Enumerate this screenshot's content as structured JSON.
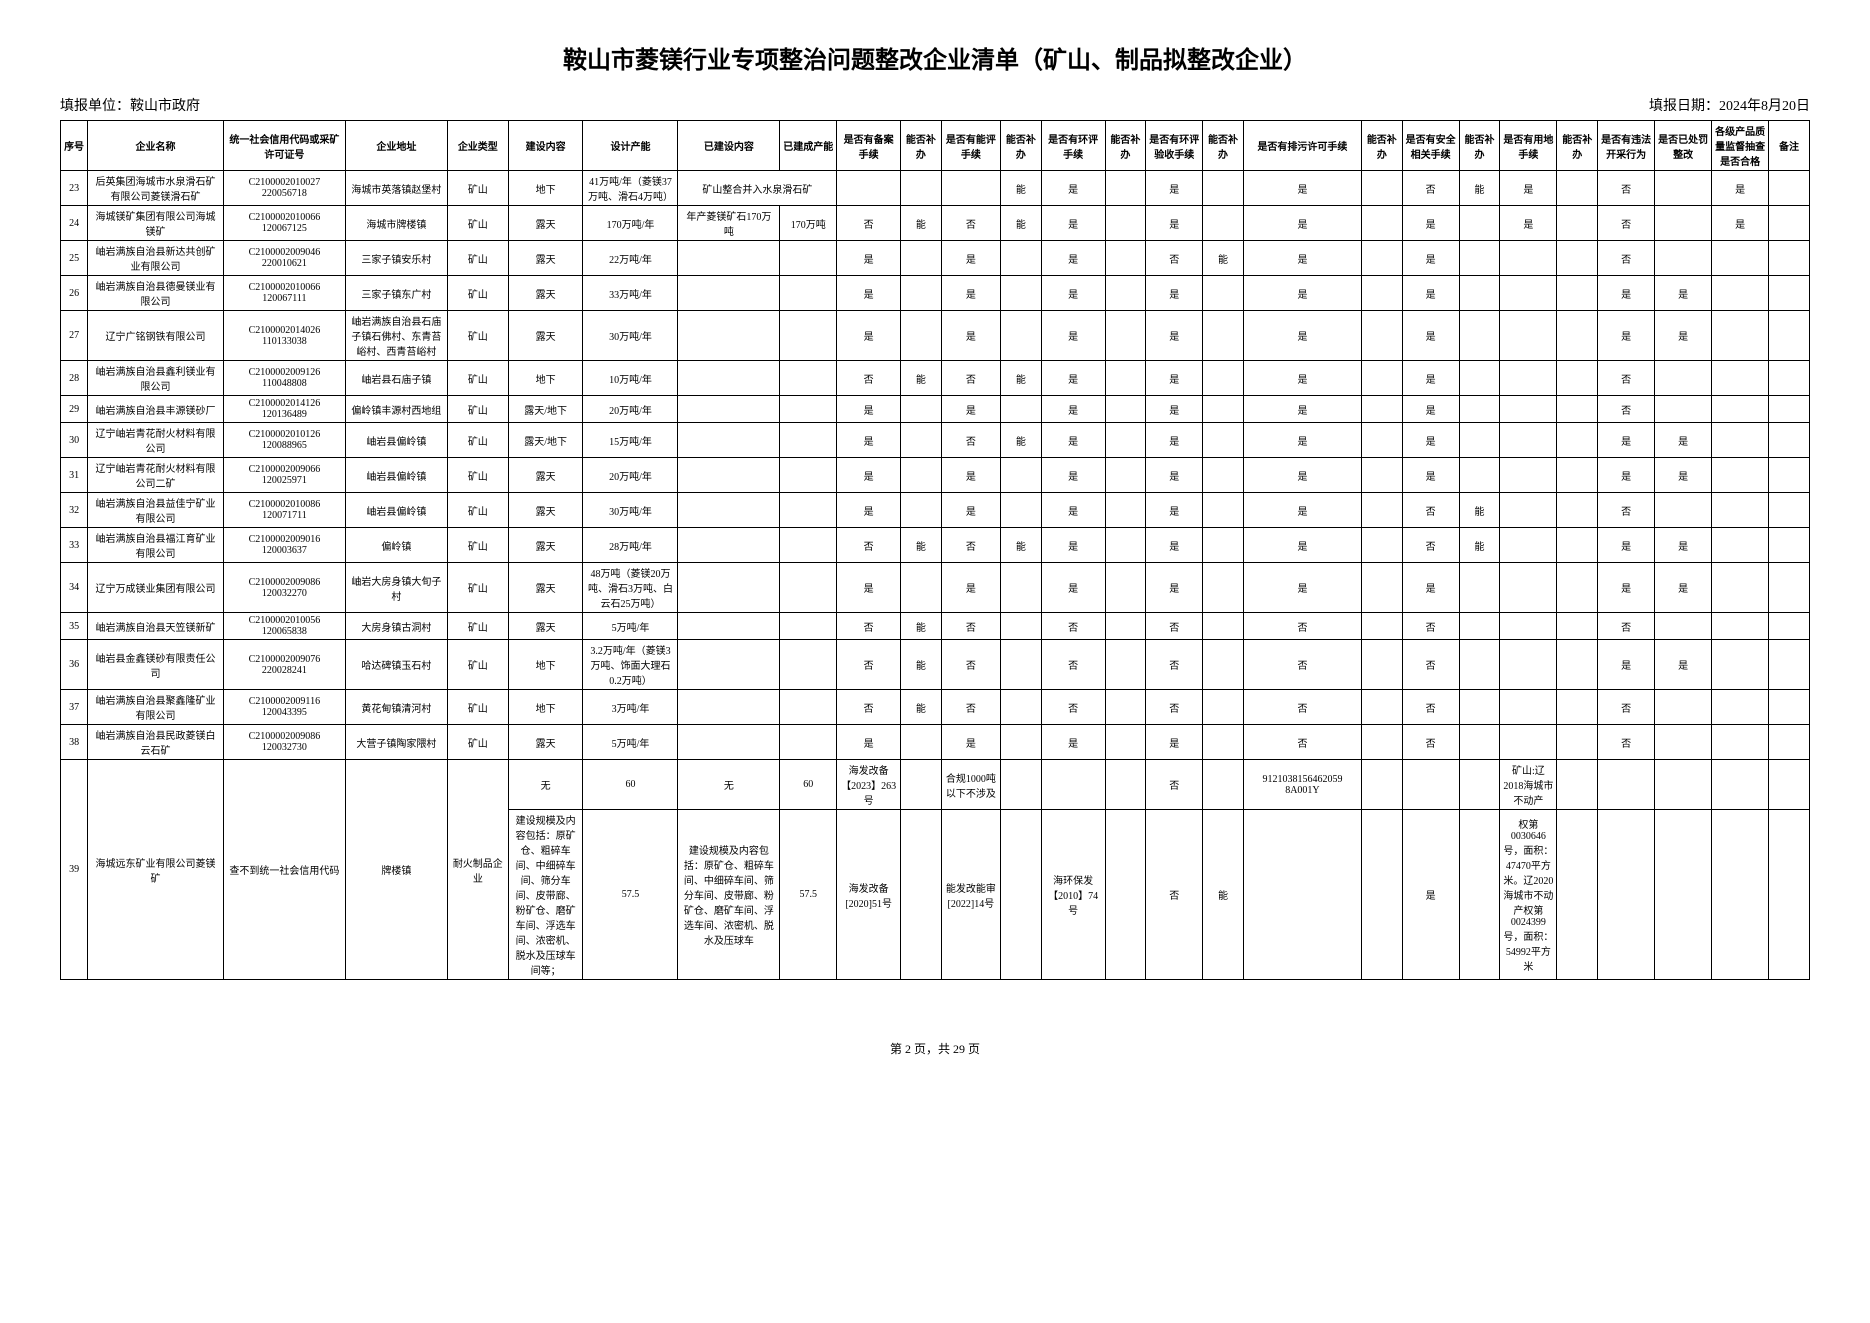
{
  "title": "鞍山市菱镁行业专项整治问题整改企业清单（矿山、制品拟整改企业）",
  "reportUnit": "填报单位：鞍山市政府",
  "reportDate": "填报日期：2024年8月20日",
  "footer": "第 2 页，共 29 页",
  "headers": [
    "序号",
    "企业名称",
    "统一社会信用代码或采矿许可证号",
    "企业地址",
    "企业类型",
    "建设内容",
    "设计产能",
    "已建设内容",
    "已建成产能",
    "是否有备案手续",
    "能否补办",
    "是否有能评手续",
    "能否补办",
    "是否有环评手续",
    "能否补办",
    "是否有环评验收手续",
    "能否补办",
    "是否有排污许可手续",
    "能否补办",
    "是否有安全相关手续",
    "能否补办",
    "是否有用地手续",
    "能否补办",
    "是否有违法开采行为",
    "是否已处罚整改",
    "各级产品质量监督抽查是否合格",
    "备注"
  ],
  "rows": [
    {
      "seq": "23",
      "name": "后英集团海城市水泉滑石矿有限公司菱镁滑石矿",
      "code": "C2100002010027 220056718",
      "addr": "海城市英落镇赵堡村",
      "type": "矿山",
      "build": "地下",
      "cap": "41万吨/年（菱镁37万吨、滑石4万吨）",
      "built": "矿山整合并入水泉滑石矿",
      "builtcap": "",
      "c9": "",
      "c10": "",
      "c11": "",
      "c12": "能",
      "c13": "是",
      "c14": "",
      "c15": "是",
      "c16": "",
      "c17": "是",
      "c18": "",
      "c19": "否",
      "c20": "能",
      "c21": "是",
      "c22": "",
      "c23": "否",
      "c24": "",
      "c25": "是",
      "c26": ""
    },
    {
      "seq": "24",
      "name": "海城镁矿集团有限公司海城镁矿",
      "code": "C2100002010066 120067125",
      "addr": "海城市牌楼镇",
      "type": "矿山",
      "build": "露天",
      "cap": "170万吨/年",
      "built": "年产菱镁矿石170万吨",
      "builtcap": "170万吨",
      "c9": "否",
      "c10": "能",
      "c11": "否",
      "c12": "能",
      "c13": "是",
      "c14": "",
      "c15": "是",
      "c16": "",
      "c17": "是",
      "c18": "",
      "c19": "是",
      "c20": "",
      "c21": "是",
      "c22": "",
      "c23": "否",
      "c24": "",
      "c25": "是",
      "c26": ""
    },
    {
      "seq": "25",
      "name": "岫岩满族自治县新达共创矿业有限公司",
      "code": "C2100002009046 220010621",
      "addr": "三家子镇安乐村",
      "type": "矿山",
      "build": "露天",
      "cap": "22万吨/年",
      "built": "",
      "builtcap": "",
      "c9": "是",
      "c10": "",
      "c11": "是",
      "c12": "",
      "c13": "是",
      "c14": "",
      "c15": "否",
      "c16": "能",
      "c17": "是",
      "c18": "",
      "c19": "是",
      "c20": "",
      "c21": "",
      "c22": "",
      "c23": "否",
      "c24": "",
      "c25": "",
      "c26": ""
    },
    {
      "seq": "26",
      "name": "岫岩满族自治县德曼镁业有限公司",
      "code": "C2100002010066 120067111",
      "addr": "三家子镇东广村",
      "type": "矿山",
      "build": "露天",
      "cap": "33万吨/年",
      "built": "",
      "builtcap": "",
      "c9": "是",
      "c10": "",
      "c11": "是",
      "c12": "",
      "c13": "是",
      "c14": "",
      "c15": "是",
      "c16": "",
      "c17": "是",
      "c18": "",
      "c19": "是",
      "c20": "",
      "c21": "",
      "c22": "",
      "c23": "是",
      "c24": "是",
      "c25": "",
      "c26": ""
    },
    {
      "seq": "27",
      "name": "辽宁广铭钢铁有限公司",
      "code": "C2100002014026 110133038",
      "addr": "岫岩满族自治县石庙子镇石佛村、东青苔峪村、西青苔峪村",
      "type": "矿山",
      "build": "露天",
      "cap": "30万吨/年",
      "built": "",
      "builtcap": "",
      "c9": "是",
      "c10": "",
      "c11": "是",
      "c12": "",
      "c13": "是",
      "c14": "",
      "c15": "是",
      "c16": "",
      "c17": "是",
      "c18": "",
      "c19": "是",
      "c20": "",
      "c21": "",
      "c22": "",
      "c23": "是",
      "c24": "是",
      "c25": "",
      "c26": ""
    },
    {
      "seq": "28",
      "name": "岫岩满族自治县鑫利镁业有限公司",
      "code": "C2100002009126 110048808",
      "addr": "岫岩县石庙子镇",
      "type": "矿山",
      "build": "地下",
      "cap": "10万吨/年",
      "built": "",
      "builtcap": "",
      "c9": "否",
      "c10": "能",
      "c11": "否",
      "c12": "能",
      "c13": "是",
      "c14": "",
      "c15": "是",
      "c16": "",
      "c17": "是",
      "c18": "",
      "c19": "是",
      "c20": "",
      "c21": "",
      "c22": "",
      "c23": "否",
      "c24": "",
      "c25": "",
      "c26": ""
    },
    {
      "seq": "29",
      "name": "岫岩满族自治县丰源镁砂厂",
      "code": "C2100002014126 120136489",
      "addr": "偏岭镇丰源村西地组",
      "type": "矿山",
      "build": "露天/地下",
      "cap": "20万吨/年",
      "built": "",
      "builtcap": "",
      "c9": "是",
      "c10": "",
      "c11": "是",
      "c12": "",
      "c13": "是",
      "c14": "",
      "c15": "是",
      "c16": "",
      "c17": "是",
      "c18": "",
      "c19": "是",
      "c20": "",
      "c21": "",
      "c22": "",
      "c23": "否",
      "c24": "",
      "c25": "",
      "c26": ""
    },
    {
      "seq": "30",
      "name": "辽宁岫岩青花耐火材料有限公司",
      "code": "C2100002010126 120088965",
      "addr": "岫岩县偏岭镇",
      "type": "矿山",
      "build": "露天/地下",
      "cap": "15万吨/年",
      "built": "",
      "builtcap": "",
      "c9": "是",
      "c10": "",
      "c11": "否",
      "c12": "能",
      "c13": "是",
      "c14": "",
      "c15": "是",
      "c16": "",
      "c17": "是",
      "c18": "",
      "c19": "是",
      "c20": "",
      "c21": "",
      "c22": "",
      "c23": "是",
      "c24": "是",
      "c25": "",
      "c26": ""
    },
    {
      "seq": "31",
      "name": "辽宁岫岩青花耐火材料有限公司二矿",
      "code": "C2100002009066 120025971",
      "addr": "岫岩县偏岭镇",
      "type": "矿山",
      "build": "露天",
      "cap": "20万吨/年",
      "built": "",
      "builtcap": "",
      "c9": "是",
      "c10": "",
      "c11": "是",
      "c12": "",
      "c13": "是",
      "c14": "",
      "c15": "是",
      "c16": "",
      "c17": "是",
      "c18": "",
      "c19": "是",
      "c20": "",
      "c21": "",
      "c22": "",
      "c23": "是",
      "c24": "是",
      "c25": "",
      "c26": ""
    },
    {
      "seq": "32",
      "name": "岫岩满族自治县益佳宁矿业有限公司",
      "code": "C2100002010086 120071711",
      "addr": "岫岩县偏岭镇",
      "type": "矿山",
      "build": "露天",
      "cap": "30万吨/年",
      "built": "",
      "builtcap": "",
      "c9": "是",
      "c10": "",
      "c11": "是",
      "c12": "",
      "c13": "是",
      "c14": "",
      "c15": "是",
      "c16": "",
      "c17": "是",
      "c18": "",
      "c19": "否",
      "c20": "能",
      "c21": "",
      "c22": "",
      "c23": "否",
      "c24": "",
      "c25": "",
      "c26": ""
    },
    {
      "seq": "33",
      "name": "岫岩满族自治县福江育矿业有限公司",
      "code": "C2100002009016 120003637",
      "addr": "偏岭镇",
      "type": "矿山",
      "build": "露天",
      "cap": "28万吨/年",
      "built": "",
      "builtcap": "",
      "c9": "否",
      "c10": "能",
      "c11": "否",
      "c12": "能",
      "c13": "是",
      "c14": "",
      "c15": "是",
      "c16": "",
      "c17": "是",
      "c18": "",
      "c19": "否",
      "c20": "能",
      "c21": "",
      "c22": "",
      "c23": "是",
      "c24": "是",
      "c25": "",
      "c26": ""
    },
    {
      "seq": "34",
      "name": "辽宁万成镁业集团有限公司",
      "code": "C2100002009086 120032270",
      "addr": "岫岩大房身镇大旬子村",
      "type": "矿山",
      "build": "露天",
      "cap": "48万吨（菱镁20万吨、滑石3万吨、白云石25万吨）",
      "built": "",
      "builtcap": "",
      "c9": "是",
      "c10": "",
      "c11": "是",
      "c12": "",
      "c13": "是",
      "c14": "",
      "c15": "是",
      "c16": "",
      "c17": "是",
      "c18": "",
      "c19": "是",
      "c20": "",
      "c21": "",
      "c22": "",
      "c23": "是",
      "c24": "是",
      "c25": "",
      "c26": ""
    },
    {
      "seq": "35",
      "name": "岫岩满族自治县天笠镁新矿",
      "code": "C2100002010056 120065838",
      "addr": "大房身镇古洞村",
      "type": "矿山",
      "build": "露天",
      "cap": "5万吨/年",
      "built": "",
      "builtcap": "",
      "c9": "否",
      "c10": "能",
      "c11": "否",
      "c12": "",
      "c13": "否",
      "c14": "",
      "c15": "否",
      "c16": "",
      "c17": "否",
      "c18": "",
      "c19": "否",
      "c20": "",
      "c21": "",
      "c22": "",
      "c23": "否",
      "c24": "",
      "c25": "",
      "c26": ""
    },
    {
      "seq": "36",
      "name": "岫岩县金鑫镁砂有限责任公司",
      "code": "C2100002009076 220028241",
      "addr": "哈达碑镇玉石村",
      "type": "矿山",
      "build": "地下",
      "cap": "3.2万吨/年（菱镁3万吨、饰面大理石0.2万吨）",
      "built": "",
      "builtcap": "",
      "c9": "否",
      "c10": "能",
      "c11": "否",
      "c12": "",
      "c13": "否",
      "c14": "",
      "c15": "否",
      "c16": "",
      "c17": "否",
      "c18": "",
      "c19": "否",
      "c20": "",
      "c21": "",
      "c22": "",
      "c23": "是",
      "c24": "是",
      "c25": "",
      "c26": ""
    },
    {
      "seq": "37",
      "name": "岫岩满族自治县聚鑫隆矿业有限公司",
      "code": "C2100002009116 120043395",
      "addr": "黄花甸镇清河村",
      "type": "矿山",
      "build": "地下",
      "cap": "3万吨/年",
      "built": "",
      "builtcap": "",
      "c9": "否",
      "c10": "能",
      "c11": "否",
      "c12": "",
      "c13": "否",
      "c14": "",
      "c15": "否",
      "c16": "",
      "c17": "否",
      "c18": "",
      "c19": "否",
      "c20": "",
      "c21": "",
      "c22": "",
      "c23": "否",
      "c24": "",
      "c25": "",
      "c26": ""
    },
    {
      "seq": "38",
      "name": "岫岩满族自治县民政菱镁白云石矿",
      "code": "C2100002009086 120032730",
      "addr": "大营子镇陶家隈村",
      "type": "矿山",
      "build": "露天",
      "cap": "5万吨/年",
      "built": "",
      "builtcap": "",
      "c9": "是",
      "c10": "",
      "c11": "是",
      "c12": "",
      "c13": "是",
      "c14": "",
      "c15": "是",
      "c16": "",
      "c17": "否",
      "c18": "",
      "c19": "否",
      "c20": "",
      "c21": "",
      "c22": "",
      "c23": "否",
      "c24": "",
      "c25": "",
      "c26": ""
    }
  ],
  "row39": {
    "seq": "39",
    "name": "海城远东矿业有限公司菱镁矿",
    "code": "查不到统一社会信用代码",
    "addr": "牌楼镇",
    "type": "耐火制品企业",
    "sub1": {
      "build": "无",
      "cap": "60",
      "built": "无",
      "builtcap": "60",
      "c9": "海发改备【2023】263号",
      "c10": "",
      "c11": "合规1000吨以下不涉及",
      "c12": "",
      "c13": "",
      "c14": "",
      "c15": "否",
      "c16": "",
      "c17": "9121038156462059 8A001Y",
      "c18": "",
      "c19": "",
      "c20": "",
      "c21": "矿山:辽2018海城市不动产",
      "c22": "",
      "c23": "",
      "c24": "",
      "c25": "",
      "c26": ""
    },
    "sub2": {
      "build": "建设规模及内容包括：原矿仓、粗碎车间、中细碎车间、筛分车间、皮带廊、粉矿仓、磨矿车间、浮选车间、浓密机、脱水及压球车间等；",
      "cap": "57.5",
      "built": "建设规模及内容包括：原矿仓、粗碎车间、中细碎车间、筛分车间、皮带廊、粉矿仓、磨矿车间、浮选车间、浓密机、脱水及压球车",
      "builtcap": "57.5",
      "c9": "海发改备[2020]51号",
      "c10": "",
      "c11": "能发改能审[2022]14号",
      "c12": "",
      "c13": "海环保发【2010】74号",
      "c14": "",
      "c15": "否",
      "c16": "能",
      "c17": "",
      "c18": "",
      "c19": "是",
      "c20": "",
      "c21": "权第0030646号，面积：47470平方米。辽2020海城市不动产权第0024399号，面积：54992平方米",
      "c22": "",
      "c23": "",
      "c24": "",
      "c25": "",
      "c26": ""
    }
  }
}
